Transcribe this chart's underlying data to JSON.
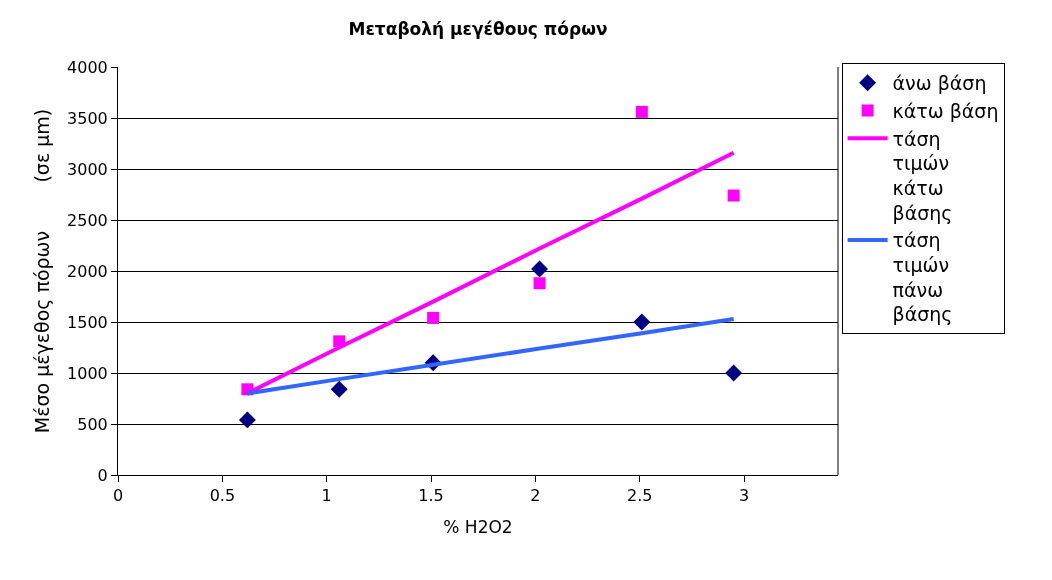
{
  "chart_data": {
    "type": "scatter",
    "title": "Μεταβολή μεγέθους πόρων",
    "xlabel": "% H2O2",
    "ylabel": "Μέσο μέγεθος πόρων        (σε μm)",
    "x": [
      0.62,
      1.06,
      1.51,
      2.02,
      2.51,
      2.95
    ],
    "series": [
      {
        "name": "άνω βάση",
        "color": "#000080",
        "marker": "diamond",
        "values": [
          540,
          840,
          1100,
          2020,
          1500,
          1000
        ]
      },
      {
        "name": "κάτω βάση",
        "color": "#ff00ff",
        "marker": "square",
        "values": [
          840,
          1310,
          1540,
          1880,
          3560,
          2740
        ]
      },
      {
        "name": "τάση τιμών κάτω βάσης",
        "type": "line",
        "color": "#ff00ff",
        "marker": "none",
        "values": [
          800,
          1250,
          1700,
          2220,
          2710,
          3160
        ]
      },
      {
        "name": "τάση τιμών πάνω βάσης",
        "type": "line",
        "color": "#3366ff",
        "marker": "none",
        "values": [
          800,
          940,
          1080,
          1240,
          1390,
          1530
        ]
      }
    ],
    "xlim": [
      0,
      3.45
    ],
    "xticks": [
      0,
      0.5,
      1,
      1.5,
      2,
      2.5,
      3
    ],
    "ylim": [
      0,
      4000
    ],
    "yticks": [
      0,
      500,
      1000,
      1500,
      2000,
      2500,
      3000,
      3500,
      4000
    ],
    "grid": "y",
    "legend": "right"
  }
}
